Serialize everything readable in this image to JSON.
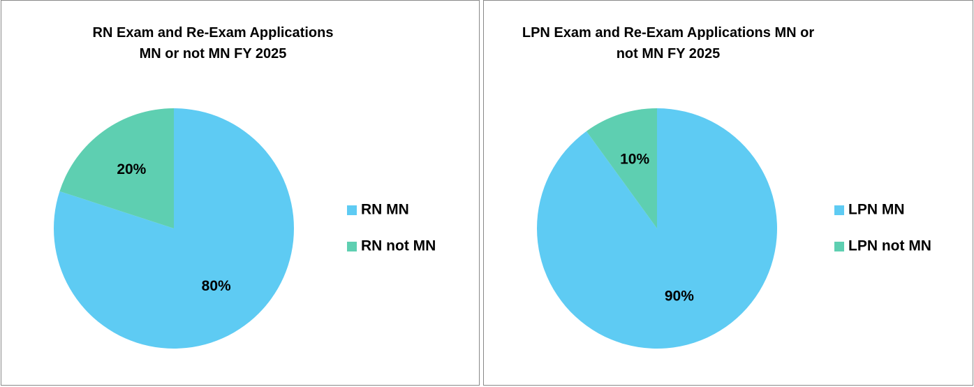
{
  "chart_data": [
    {
      "type": "pie",
      "title": "RN Exam and Re-Exam Applications MN or not MN FY 2025",
      "categories": [
        "RN MN",
        "RN not MN"
      ],
      "values": [
        80,
        20
      ],
      "value_labels": [
        "80%",
        "20%"
      ],
      "colors": [
        "#5ecbf3",
        "#5ecfb1"
      ],
      "legend": "right"
    },
    {
      "type": "pie",
      "title": "LPN Exam and Re-Exam Applications MN or not MN FY 2025",
      "categories": [
        "LPN MN",
        "LPN not MN"
      ],
      "values": [
        90,
        10
      ],
      "value_labels": [
        "90%",
        "10%"
      ],
      "colors": [
        "#5ecbf3",
        "#5ecfb1"
      ],
      "legend": "right"
    }
  ]
}
